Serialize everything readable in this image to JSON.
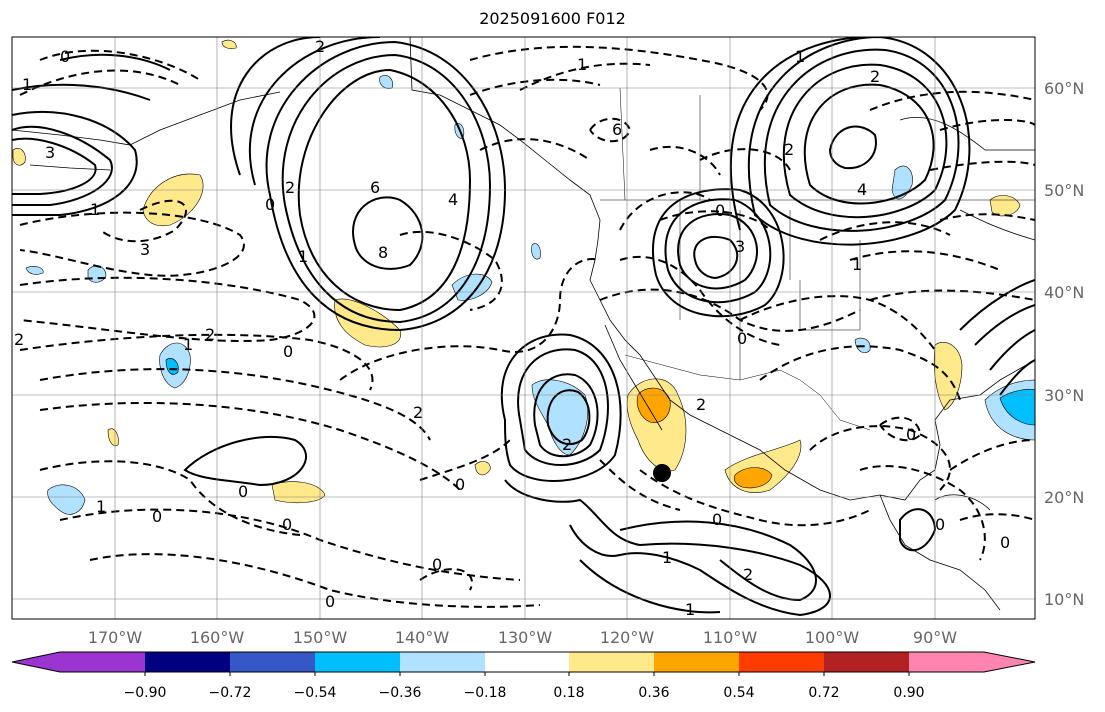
{
  "title": "2025091600 F012",
  "lon_labels": [
    "170°W",
    "160°W",
    "150°W",
    "140°W",
    "130°W",
    "120°W",
    "110°W",
    "100°W",
    "90°W"
  ],
  "lat_labels": [
    "60°N",
    "50°N",
    "40°N",
    "30°N",
    "20°N",
    "10°N"
  ],
  "colorbar": {
    "ticks": [
      "−0.90",
      "−0.72",
      "−0.54",
      "−0.36",
      "−0.18",
      "0.18",
      "0.36",
      "0.54",
      "0.72",
      "0.90"
    ],
    "colors": [
      "#9a35d1",
      "#000080",
      "#3557c8",
      "#00bfff",
      "#b0e2ff",
      "#ffffff",
      "#ffe98a",
      "#ffa500",
      "#ff3c00",
      "#b22222",
      "#ff85b0"
    ]
  },
  "contour_labels": [
    "0",
    "2",
    "3",
    "6",
    "1",
    "2",
    "2",
    "0",
    "6",
    "8",
    "4",
    "0",
    "1",
    "1",
    "2",
    "0",
    "2",
    "0",
    "4",
    "2",
    "3",
    "0",
    "2",
    "1",
    "1",
    "0",
    "2",
    "0",
    "1",
    "0",
    "0",
    "1",
    "2",
    "0",
    "0",
    "2",
    "0",
    "1",
    "3",
    "1",
    "0",
    "0",
    "1"
  ]
}
